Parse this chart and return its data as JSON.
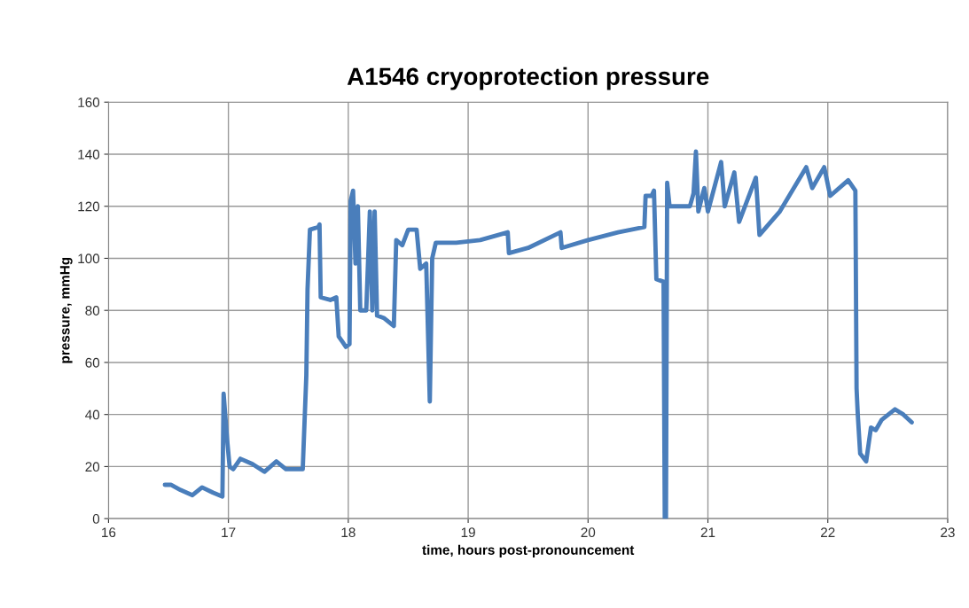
{
  "chart_data": {
    "type": "line",
    "title": "A1546 cryoprotection pressure",
    "xlabel": "time, hours post-pronouncement",
    "ylabel": "pressure, mmHg",
    "series": [
      {
        "color": "#4a7ebb",
        "x": [
          16.47,
          16.52,
          16.6,
          16.7,
          16.78,
          16.87,
          16.95,
          16.96,
          16.99,
          17.01,
          17.04,
          17.1,
          17.2,
          17.3,
          17.4,
          17.48,
          17.62,
          17.65,
          17.66,
          17.68,
          17.75,
          17.76,
          17.77,
          17.85,
          17.9,
          17.92,
          17.95,
          17.98,
          18.01,
          18.02,
          18.04,
          18.06,
          18.08,
          18.1,
          18.15,
          18.18,
          18.2,
          18.22,
          18.24,
          18.3,
          18.38,
          18.4,
          18.45,
          18.5,
          18.57,
          18.6,
          18.65,
          18.68,
          18.7,
          18.73,
          18.9,
          19.1,
          19.33,
          19.34,
          19.5,
          19.77,
          19.78,
          20.0,
          20.25,
          20.47,
          20.48,
          20.53,
          20.55,
          20.57,
          20.63,
          20.64,
          20.65,
          20.66,
          20.68,
          20.85,
          20.88,
          20.9,
          20.92,
          20.97,
          21.0,
          21.11,
          21.14,
          21.22,
          21.26,
          21.4,
          21.43,
          21.6,
          21.82,
          21.87,
          21.97,
          22.02,
          22.17,
          22.23,
          22.24,
          22.25,
          22.27,
          22.32,
          22.36,
          22.4,
          22.45,
          22.56,
          22.63,
          22.7
        ],
        "values": [
          13,
          13,
          11,
          9,
          12,
          10,
          8.5,
          48,
          30,
          20,
          19,
          23,
          21,
          18,
          22,
          19,
          19,
          55,
          88,
          111,
          112,
          113,
          85,
          84,
          85,
          70,
          68,
          66,
          67,
          122,
          126,
          98,
          120,
          80,
          80,
          118,
          80,
          118,
          78,
          77,
          74,
          107,
          105,
          111,
          111,
          96,
          98,
          45,
          100,
          106,
          106,
          107,
          110,
          102,
          104,
          110,
          104,
          107,
          110,
          112,
          124,
          124,
          126,
          92,
          91,
          0,
          0,
          129,
          120,
          120,
          125,
          141,
          118,
          127,
          118,
          137,
          120,
          133,
          114,
          131,
          109,
          118,
          135,
          127,
          135,
          124,
          130,
          126,
          50,
          40,
          25,
          22,
          35,
          34,
          38,
          42,
          40,
          37
        ]
      }
    ],
    "xlim": [
      16,
      23
    ],
    "xticks": [
      16,
      17,
      18,
      19,
      20,
      21,
      22,
      23
    ],
    "ylim": [
      0,
      160
    ],
    "yticks": [
      0,
      20,
      40,
      60,
      80,
      100,
      120,
      140,
      160
    ],
    "grid": true,
    "line_style": "solid"
  }
}
